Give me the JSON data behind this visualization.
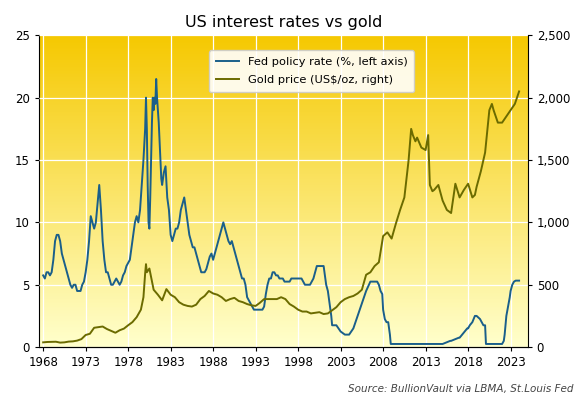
{
  "title": "US interest rates vs gold",
  "source_text": "Source: BullionVault via LBMA, St.Louis Fed",
  "fed_color": "#1a5f8a",
  "gold_color": "#6b6b00",
  "fed_label": "Fed policy rate (%, left axis)",
  "gold_label": "Gold price (US$/oz, right)",
  "left_ylim": [
    0,
    25
  ],
  "right_ylim": [
    0,
    2500
  ],
  "left_yticks": [
    0,
    5,
    10,
    15,
    20,
    25
  ],
  "right_yticks": [
    0,
    500,
    1000,
    1500,
    2000,
    2500
  ],
  "xticks": [
    1968,
    1973,
    1978,
    1983,
    1988,
    1993,
    1998,
    2003,
    2008,
    2013,
    2018,
    2023
  ],
  "xlim": [
    1967.5,
    2025
  ],
  "bg_color_top": "#f5c800",
  "bg_color_bottom": "#ffffcc",
  "grid_color": "#ffffff",
  "fed_data": [
    [
      1968.0,
      5.75
    ],
    [
      1968.2,
      5.5
    ],
    [
      1968.4,
      6.0
    ],
    [
      1968.6,
      6.0
    ],
    [
      1968.8,
      5.75
    ],
    [
      1969.0,
      6.0
    ],
    [
      1969.2,
      7.0
    ],
    [
      1969.4,
      8.5
    ],
    [
      1969.6,
      9.0
    ],
    [
      1969.8,
      9.0
    ],
    [
      1970.0,
      8.5
    ],
    [
      1970.2,
      7.5
    ],
    [
      1970.4,
      7.0
    ],
    [
      1970.6,
      6.5
    ],
    [
      1970.8,
      6.0
    ],
    [
      1971.0,
      5.5
    ],
    [
      1971.2,
      5.0
    ],
    [
      1971.4,
      4.75
    ],
    [
      1971.6,
      5.0
    ],
    [
      1971.8,
      5.0
    ],
    [
      1972.0,
      4.5
    ],
    [
      1972.2,
      4.5
    ],
    [
      1972.4,
      4.5
    ],
    [
      1972.6,
      5.0
    ],
    [
      1972.8,
      5.25
    ],
    [
      1973.0,
      6.0
    ],
    [
      1973.2,
      7.0
    ],
    [
      1973.4,
      8.5
    ],
    [
      1973.6,
      10.5
    ],
    [
      1973.8,
      10.0
    ],
    [
      1974.0,
      9.5
    ],
    [
      1974.2,
      10.0
    ],
    [
      1974.4,
      11.5
    ],
    [
      1974.6,
      13.0
    ],
    [
      1974.8,
      11.0
    ],
    [
      1975.0,
      8.5
    ],
    [
      1975.2,
      7.0
    ],
    [
      1975.4,
      6.0
    ],
    [
      1975.6,
      6.0
    ],
    [
      1975.8,
      5.5
    ],
    [
      1976.0,
      5.0
    ],
    [
      1976.2,
      5.0
    ],
    [
      1976.4,
      5.25
    ],
    [
      1976.6,
      5.5
    ],
    [
      1976.8,
      5.25
    ],
    [
      1977.0,
      5.0
    ],
    [
      1977.2,
      5.25
    ],
    [
      1977.4,
      5.75
    ],
    [
      1977.6,
      6.0
    ],
    [
      1977.8,
      6.5
    ],
    [
      1978.0,
      6.75
    ],
    [
      1978.2,
      7.0
    ],
    [
      1978.4,
      8.0
    ],
    [
      1978.6,
      9.0
    ],
    [
      1978.8,
      10.0
    ],
    [
      1979.0,
      10.5
    ],
    [
      1979.2,
      10.0
    ],
    [
      1979.4,
      11.0
    ],
    [
      1979.6,
      13.0
    ],
    [
      1979.8,
      15.0
    ],
    [
      1980.0,
      17.5
    ],
    [
      1980.1,
      20.0
    ],
    [
      1980.2,
      17.5
    ],
    [
      1980.3,
      13.0
    ],
    [
      1980.4,
      10.0
    ],
    [
      1980.5,
      9.5
    ],
    [
      1980.6,
      12.0
    ],
    [
      1980.7,
      15.0
    ],
    [
      1980.8,
      18.0
    ],
    [
      1980.9,
      20.0
    ],
    [
      1981.0,
      19.0
    ],
    [
      1981.1,
      20.0
    ],
    [
      1981.2,
      19.5
    ],
    [
      1981.3,
      21.5
    ],
    [
      1981.4,
      20.0
    ],
    [
      1981.5,
      19.0
    ],
    [
      1981.6,
      18.0
    ],
    [
      1981.7,
      16.5
    ],
    [
      1981.8,
      15.0
    ],
    [
      1981.9,
      13.5
    ],
    [
      1982.0,
      13.0
    ],
    [
      1982.2,
      14.0
    ],
    [
      1982.4,
      14.5
    ],
    [
      1982.6,
      12.0
    ],
    [
      1982.8,
      11.0
    ],
    [
      1983.0,
      9.0
    ],
    [
      1983.2,
      8.5
    ],
    [
      1983.4,
      9.0
    ],
    [
      1983.6,
      9.5
    ],
    [
      1983.8,
      9.5
    ],
    [
      1984.0,
      10.0
    ],
    [
      1984.2,
      11.0
    ],
    [
      1984.4,
      11.5
    ],
    [
      1984.6,
      12.0
    ],
    [
      1984.8,
      11.0
    ],
    [
      1985.0,
      10.0
    ],
    [
      1985.2,
      9.0
    ],
    [
      1985.4,
      8.5
    ],
    [
      1985.6,
      8.0
    ],
    [
      1985.8,
      8.0
    ],
    [
      1986.0,
      7.5
    ],
    [
      1986.2,
      7.0
    ],
    [
      1986.4,
      6.5
    ],
    [
      1986.6,
      6.0
    ],
    [
      1986.8,
      6.0
    ],
    [
      1987.0,
      6.0
    ],
    [
      1987.2,
      6.25
    ],
    [
      1987.4,
      6.75
    ],
    [
      1987.6,
      7.25
    ],
    [
      1987.8,
      7.5
    ],
    [
      1988.0,
      7.0
    ],
    [
      1988.2,
      7.5
    ],
    [
      1988.4,
      8.0
    ],
    [
      1988.6,
      8.5
    ],
    [
      1988.8,
      9.0
    ],
    [
      1989.0,
      9.5
    ],
    [
      1989.2,
      10.0
    ],
    [
      1989.4,
      9.5
    ],
    [
      1989.6,
      9.0
    ],
    [
      1989.8,
      8.5
    ],
    [
      1990.0,
      8.25
    ],
    [
      1990.2,
      8.5
    ],
    [
      1990.4,
      8.0
    ],
    [
      1990.6,
      7.5
    ],
    [
      1990.8,
      7.0
    ],
    [
      1991.0,
      6.5
    ],
    [
      1991.2,
      6.0
    ],
    [
      1991.4,
      5.5
    ],
    [
      1991.6,
      5.5
    ],
    [
      1991.8,
      5.0
    ],
    [
      1992.0,
      4.0
    ],
    [
      1992.2,
      3.75
    ],
    [
      1992.4,
      3.5
    ],
    [
      1992.6,
      3.25
    ],
    [
      1992.8,
      3.0
    ],
    [
      1993.0,
      3.0
    ],
    [
      1993.2,
      3.0
    ],
    [
      1993.4,
      3.0
    ],
    [
      1993.6,
      3.0
    ],
    [
      1993.8,
      3.0
    ],
    [
      1994.0,
      3.25
    ],
    [
      1994.2,
      4.25
    ],
    [
      1994.4,
      5.0
    ],
    [
      1994.6,
      5.5
    ],
    [
      1994.8,
      5.5
    ],
    [
      1995.0,
      6.0
    ],
    [
      1995.2,
      6.0
    ],
    [
      1995.4,
      5.75
    ],
    [
      1995.6,
      5.75
    ],
    [
      1995.8,
      5.5
    ],
    [
      1996.0,
      5.5
    ],
    [
      1996.2,
      5.5
    ],
    [
      1996.4,
      5.25
    ],
    [
      1996.6,
      5.25
    ],
    [
      1996.8,
      5.25
    ],
    [
      1997.0,
      5.25
    ],
    [
      1997.2,
      5.5
    ],
    [
      1997.4,
      5.5
    ],
    [
      1997.6,
      5.5
    ],
    [
      1997.8,
      5.5
    ],
    [
      1998.0,
      5.5
    ],
    [
      1998.2,
      5.5
    ],
    [
      1998.4,
      5.5
    ],
    [
      1998.6,
      5.25
    ],
    [
      1998.8,
      5.0
    ],
    [
      1999.0,
      5.0
    ],
    [
      1999.2,
      5.0
    ],
    [
      1999.4,
      5.0
    ],
    [
      1999.6,
      5.25
    ],
    [
      1999.8,
      5.5
    ],
    [
      2000.0,
      6.0
    ],
    [
      2000.2,
      6.5
    ],
    [
      2000.4,
      6.5
    ],
    [
      2000.6,
      6.5
    ],
    [
      2000.8,
      6.5
    ],
    [
      2001.0,
      6.5
    ],
    [
      2001.1,
      6.0
    ],
    [
      2001.2,
      5.5
    ],
    [
      2001.3,
      5.0
    ],
    [
      2001.5,
      4.5
    ],
    [
      2001.6,
      4.0
    ],
    [
      2001.7,
      3.5
    ],
    [
      2001.8,
      3.0
    ],
    [
      2001.9,
      2.5
    ],
    [
      2002.0,
      1.75
    ],
    [
      2002.5,
      1.75
    ],
    [
      2003.0,
      1.25
    ],
    [
      2003.5,
      1.0
    ],
    [
      2004.0,
      1.0
    ],
    [
      2004.5,
      1.5
    ],
    [
      2005.0,
      2.5
    ],
    [
      2005.5,
      3.5
    ],
    [
      2006.0,
      4.5
    ],
    [
      2006.5,
      5.25
    ],
    [
      2007.0,
      5.25
    ],
    [
      2007.3,
      5.25
    ],
    [
      2007.5,
      5.0
    ],
    [
      2007.7,
      4.5
    ],
    [
      2007.9,
      4.25
    ],
    [
      2008.0,
      3.0
    ],
    [
      2008.2,
      2.25
    ],
    [
      2008.4,
      2.0
    ],
    [
      2008.6,
      2.0
    ],
    [
      2008.8,
      1.0
    ],
    [
      2008.9,
      0.25
    ],
    [
      2009.0,
      0.25
    ],
    [
      2010.0,
      0.25
    ],
    [
      2011.0,
      0.25
    ],
    [
      2012.0,
      0.25
    ],
    [
      2013.0,
      0.25
    ],
    [
      2014.0,
      0.25
    ],
    [
      2015.0,
      0.25
    ],
    [
      2015.9,
      0.5
    ],
    [
      2016.0,
      0.5
    ],
    [
      2016.9,
      0.75
    ],
    [
      2017.0,
      0.75
    ],
    [
      2017.3,
      1.0
    ],
    [
      2017.6,
      1.25
    ],
    [
      2017.9,
      1.5
    ],
    [
      2018.0,
      1.5
    ],
    [
      2018.2,
      1.75
    ],
    [
      2018.5,
      2.0
    ],
    [
      2018.8,
      2.5
    ],
    [
      2019.0,
      2.5
    ],
    [
      2019.4,
      2.25
    ],
    [
      2019.6,
      2.0
    ],
    [
      2019.8,
      1.75
    ],
    [
      2020.0,
      1.75
    ],
    [
      2020.1,
      0.25
    ],
    [
      2020.5,
      0.25
    ],
    [
      2021.0,
      0.25
    ],
    [
      2021.5,
      0.25
    ],
    [
      2022.0,
      0.25
    ],
    [
      2022.2,
      0.5
    ],
    [
      2022.3,
      1.0
    ],
    [
      2022.5,
      2.5
    ],
    [
      2022.7,
      3.25
    ],
    [
      2022.9,
      4.0
    ],
    [
      2023.0,
      4.5
    ],
    [
      2023.2,
      5.0
    ],
    [
      2023.4,
      5.25
    ],
    [
      2023.6,
      5.33
    ],
    [
      2023.8,
      5.33
    ],
    [
      2024.0,
      5.33
    ]
  ],
  "gold_data": [
    [
      1968.0,
      38
    ],
    [
      1968.5,
      41
    ],
    [
      1969.0,
      42
    ],
    [
      1969.5,
      43
    ],
    [
      1970.0,
      36
    ],
    [
      1970.5,
      38
    ],
    [
      1971.0,
      44
    ],
    [
      1971.5,
      46
    ],
    [
      1972.0,
      52
    ],
    [
      1972.5,
      64
    ],
    [
      1973.0,
      97
    ],
    [
      1973.5,
      107
    ],
    [
      1974.0,
      155
    ],
    [
      1974.5,
      160
    ],
    [
      1975.0,
      165
    ],
    [
      1975.5,
      145
    ],
    [
      1976.0,
      130
    ],
    [
      1976.5,
      115
    ],
    [
      1977.0,
      135
    ],
    [
      1977.5,
      148
    ],
    [
      1978.0,
      175
    ],
    [
      1978.5,
      200
    ],
    [
      1979.0,
      240
    ],
    [
      1979.5,
      300
    ],
    [
      1979.8,
      400
    ],
    [
      1980.0,
      590
    ],
    [
      1980.1,
      665
    ],
    [
      1980.2,
      600
    ],
    [
      1980.5,
      630
    ],
    [
      1981.0,
      460
    ],
    [
      1981.5,
      420
    ],
    [
      1982.0,
      375
    ],
    [
      1982.5,
      465
    ],
    [
      1983.0,
      420
    ],
    [
      1983.5,
      400
    ],
    [
      1984.0,
      360
    ],
    [
      1984.5,
      340
    ],
    [
      1985.0,
      330
    ],
    [
      1985.5,
      325
    ],
    [
      1986.0,
      340
    ],
    [
      1986.5,
      385
    ],
    [
      1987.0,
      410
    ],
    [
      1987.5,
      450
    ],
    [
      1988.0,
      430
    ],
    [
      1988.5,
      420
    ],
    [
      1989.0,
      400
    ],
    [
      1989.5,
      370
    ],
    [
      1990.0,
      385
    ],
    [
      1990.5,
      395
    ],
    [
      1991.0,
      370
    ],
    [
      1991.5,
      360
    ],
    [
      1992.0,
      345
    ],
    [
      1992.5,
      335
    ],
    [
      1993.0,
      330
    ],
    [
      1993.5,
      355
    ],
    [
      1994.0,
      385
    ],
    [
      1994.5,
      385
    ],
    [
      1995.0,
      385
    ],
    [
      1995.5,
      385
    ],
    [
      1996.0,
      400
    ],
    [
      1996.5,
      385
    ],
    [
      1997.0,
      345
    ],
    [
      1997.5,
      325
    ],
    [
      1998.0,
      300
    ],
    [
      1998.5,
      285
    ],
    [
      1999.0,
      285
    ],
    [
      1999.5,
      270
    ],
    [
      2000.0,
      275
    ],
    [
      2000.5,
      280
    ],
    [
      2001.0,
      265
    ],
    [
      2001.5,
      270
    ],
    [
      2002.0,
      295
    ],
    [
      2002.5,
      320
    ],
    [
      2003.0,
      360
    ],
    [
      2003.5,
      385
    ],
    [
      2004.0,
      400
    ],
    [
      2004.5,
      410
    ],
    [
      2005.0,
      430
    ],
    [
      2005.5,
      460
    ],
    [
      2006.0,
      580
    ],
    [
      2006.5,
      600
    ],
    [
      2007.0,
      650
    ],
    [
      2007.5,
      680
    ],
    [
      2008.0,
      890
    ],
    [
      2008.5,
      920
    ],
    [
      2009.0,
      870
    ],
    [
      2009.5,
      990
    ],
    [
      2010.0,
      1100
    ],
    [
      2010.5,
      1200
    ],
    [
      2011.0,
      1500
    ],
    [
      2011.3,
      1750
    ],
    [
      2011.5,
      1700
    ],
    [
      2011.8,
      1650
    ],
    [
      2012.0,
      1680
    ],
    [
      2012.5,
      1600
    ],
    [
      2013.0,
      1580
    ],
    [
      2013.3,
      1700
    ],
    [
      2013.5,
      1300
    ],
    [
      2013.8,
      1250
    ],
    [
      2014.0,
      1260
    ],
    [
      2014.5,
      1300
    ],
    [
      2015.0,
      1175
    ],
    [
      2015.5,
      1100
    ],
    [
      2016.0,
      1075
    ],
    [
      2016.5,
      1310
    ],
    [
      2017.0,
      1200
    ],
    [
      2017.5,
      1260
    ],
    [
      2018.0,
      1310
    ],
    [
      2018.5,
      1200
    ],
    [
      2018.8,
      1220
    ],
    [
      2019.0,
      1285
    ],
    [
      2019.5,
      1410
    ],
    [
      2020.0,
      1560
    ],
    [
      2020.5,
      1900
    ],
    [
      2020.8,
      1950
    ],
    [
      2021.0,
      1900
    ],
    [
      2021.5,
      1800
    ],
    [
      2022.0,
      1800
    ],
    [
      2022.5,
      1850
    ],
    [
      2023.0,
      1900
    ],
    [
      2023.5,
      1950
    ],
    [
      2024.0,
      2050
    ]
  ]
}
